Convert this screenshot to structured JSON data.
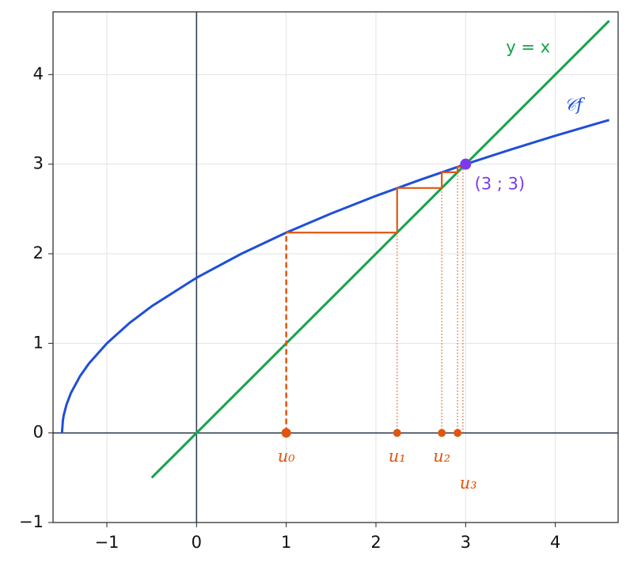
{
  "chart_data": {
    "type": "line",
    "xlim": [
      -1.6,
      4.7
    ],
    "ylim": [
      -1,
      4.7
    ],
    "xticks": [
      {
        "value": -1,
        "label": "−1"
      },
      0,
      1,
      2,
      3,
      4
    ],
    "yticks": [
      {
        "value": -1,
        "label": "−1"
      },
      0,
      1,
      2,
      3,
      4
    ],
    "grid": true,
    "series": [
      {
        "name": "𝒞f",
        "color": "#1f4fd6",
        "style": "solid",
        "x": [
          -1.5,
          -1.49,
          -1.48,
          -1.45,
          -1.4,
          -1.3,
          -1.2,
          -1,
          -0.75,
          -0.5,
          0,
          0.5,
          1,
          1.5,
          2,
          2.5,
          3,
          3.5,
          4,
          4.6
        ],
        "values": [
          0,
          0.141,
          0.2,
          0.316,
          0.447,
          0.632,
          0.775,
          1,
          1.225,
          1.414,
          1.732,
          2,
          2.236,
          2.449,
          2.646,
          2.828,
          3,
          3.162,
          3.317,
          3.493
        ]
      },
      {
        "name": "y = x",
        "color": "#16a34a",
        "style": "solid",
        "x": [
          -0.5,
          4.6
        ],
        "values": [
          -0.5,
          4.6
        ]
      },
      {
        "color": "#e0560f",
        "style": "dashed",
        "x": [
          1,
          1
        ],
        "values": [
          0,
          2.236
        ]
      },
      {
        "color": "#e0560f",
        "style": "solid",
        "x": [
          1,
          2.236,
          2.236,
          2.734,
          2.734,
          2.91,
          2.91,
          2.97
        ],
        "values": [
          2.236,
          2.236,
          2.734,
          2.734,
          2.91,
          2.91,
          2.97,
          2.97
        ]
      },
      {
        "color": "#e0560f",
        "style": "dotted",
        "x": [
          2.236,
          2.236,
          null,
          2.734,
          2.734,
          null,
          2.91,
          2.91,
          null,
          2.97,
          2.97
        ],
        "values": [
          0,
          2.236,
          null,
          0,
          2.734,
          null,
          0,
          2.91,
          null,
          0,
          2.97
        ]
      }
    ],
    "points": [
      {
        "label": "u₀",
        "x": 1,
        "y": 0,
        "color": "#e0560f"
      },
      {
        "label": "u₁",
        "x": 2.236,
        "y": 0,
        "color": "#e0560f"
      },
      {
        "label": "u₂",
        "x": 2.734,
        "y": 0,
        "color": "#e0560f"
      },
      {
        "label": "u₃",
        "x": 2.91,
        "y": 0,
        "color": "#e0560f"
      },
      {
        "label": "(3 ; 3)",
        "x": 3,
        "y": 3,
        "color": "#7c3aed"
      }
    ]
  }
}
